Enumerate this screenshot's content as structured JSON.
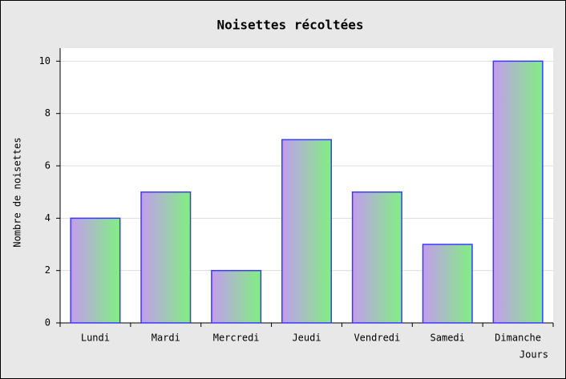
{
  "chart_data": {
    "type": "bar",
    "title": "Noisettes récoltées",
    "ylabel": "Nombre de noisettes",
    "xlabel": "Jours",
    "categories": [
      "Lundi",
      "Mardi",
      "Mercredi",
      "Jeudi",
      "Vendredi",
      "Samedi",
      "Dimanche"
    ],
    "values": [
      4,
      5,
      2,
      7,
      5,
      3,
      10
    ],
    "color": [
      "#c49cf0",
      "#80f080"
    ],
    "edgecolor": "#3a3aff",
    "ylim": [
      0,
      10.5
    ],
    "yticks": [
      0,
      2,
      4,
      6,
      8,
      10
    ],
    "grid": true
  }
}
